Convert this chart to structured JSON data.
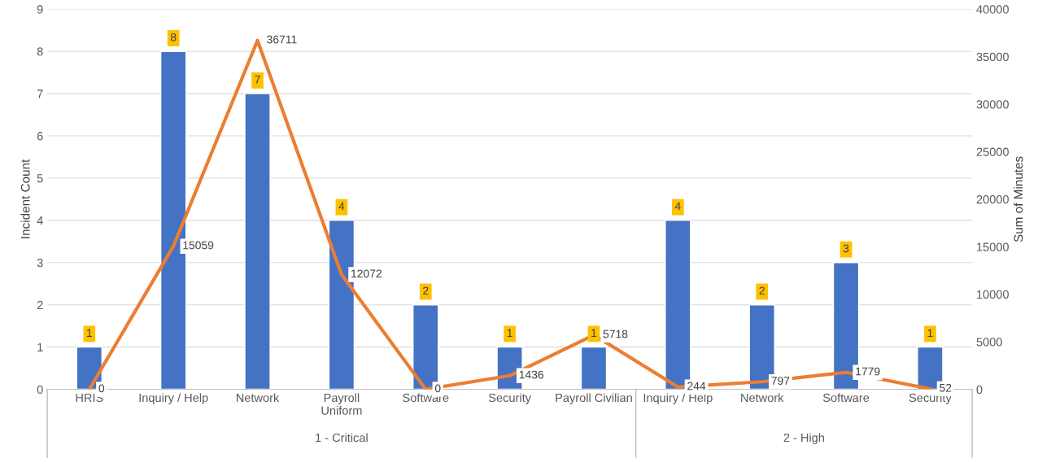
{
  "chart_data": {
    "type": "bar",
    "ylabel": "Incident Count",
    "y2label": "Sum of Minutes",
    "categories": [
      "HRIS",
      "Inquiry / Help",
      "Network",
      "Payroll\nUniform",
      "Software",
      "Security",
      "Payroll Civilian",
      "Inquiry / Help",
      "Network",
      "Software",
      "Security"
    ],
    "series": [
      {
        "color": "#4472c4",
        "values": [
          1,
          8,
          7,
          4,
          2,
          1,
          1,
          4,
          2,
          3,
          1
        ]
      },
      {
        "type": "line",
        "axis": "y2",
        "color": "#ed7d31",
        "values": [
          0,
          15059,
          36711,
          12072,
          0,
          1436,
          5718,
          244,
          797,
          1779,
          52
        ]
      }
    ],
    "ylim": [
      0,
      9
    ],
    "yticks": [
      0,
      1,
      2,
      3,
      4,
      5,
      6,
      7,
      8,
      9
    ],
    "y2lim": [
      0,
      40000
    ],
    "y2ticks": [
      0,
      5000,
      10000,
      15000,
      20000,
      25000,
      30000,
      35000,
      40000
    ],
    "grid": "y",
    "legend": false,
    "marker": "none",
    "line_style": "solid",
    "data_labels": true,
    "annotations": [
      "1 - Critical",
      "2 - High"
    ]
  }
}
